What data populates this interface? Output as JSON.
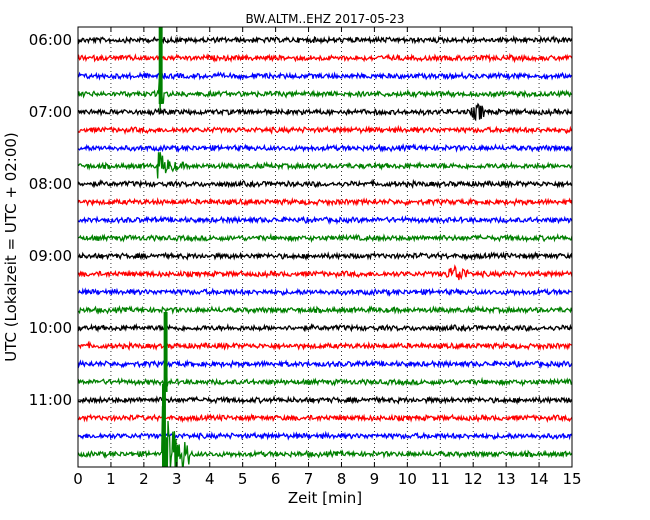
{
  "chart_data": {
    "type": "line",
    "title": "BW.ALTM..EHZ 2017-05-23",
    "xlabel": "Zeit  [min]",
    "ylabel": "UTC (Lokalzeit = UTC + 02:00)",
    "xlim": [
      0,
      15
    ],
    "x_ticks": [
      0,
      1,
      2,
      3,
      4,
      5,
      6,
      7,
      8,
      9,
      10,
      11,
      12,
      13,
      14,
      15
    ],
    "x_tick_labels": [
      "0",
      "1",
      "2",
      "3",
      "4",
      "5",
      "6",
      "7",
      "8",
      "9",
      "10",
      "11",
      "12",
      "13",
      "14",
      "15"
    ],
    "y_tick_labels": [
      "06:00",
      "07:00",
      "08:00",
      "09:00",
      "10:00",
      "11:00"
    ],
    "grid": "vertical dotted",
    "trace_interval_minutes": 15,
    "first_trace": "06:00",
    "trace_colors": [
      "#000000",
      "#ff0000",
      "#0000ff",
      "#008000"
    ],
    "traces": [
      {
        "start": "06:00",
        "color": "#000000"
      },
      {
        "start": "06:15",
        "color": "#ff0000"
      },
      {
        "start": "06:30",
        "color": "#0000ff"
      },
      {
        "start": "06:45",
        "color": "#008000"
      },
      {
        "start": "07:00",
        "color": "#000000"
      },
      {
        "start": "07:15",
        "color": "#ff0000"
      },
      {
        "start": "07:30",
        "color": "#0000ff"
      },
      {
        "start": "07:45",
        "color": "#008000"
      },
      {
        "start": "08:00",
        "color": "#000000"
      },
      {
        "start": "08:15",
        "color": "#ff0000"
      },
      {
        "start": "08:30",
        "color": "#0000ff"
      },
      {
        "start": "08:45",
        "color": "#008000"
      },
      {
        "start": "09:00",
        "color": "#000000"
      },
      {
        "start": "09:15",
        "color": "#ff0000"
      },
      {
        "start": "09:30",
        "color": "#0000ff"
      },
      {
        "start": "09:45",
        "color": "#008000"
      },
      {
        "start": "10:00",
        "color": "#000000"
      },
      {
        "start": "10:15",
        "color": "#ff0000"
      },
      {
        "start": "10:30",
        "color": "#0000ff"
      },
      {
        "start": "10:45",
        "color": "#008000"
      },
      {
        "start": "11:00",
        "color": "#000000"
      },
      {
        "start": "11:15",
        "color": "#ff0000"
      },
      {
        "start": "11:30",
        "color": "#0000ff"
      },
      {
        "start": "11:45",
        "color": "#008000"
      }
    ],
    "events": [
      {
        "trace": "06:45",
        "x_start": 2.45,
        "x_end": 2.6,
        "amplitude": "clipped",
        "color": "#008000"
      },
      {
        "trace": "07:45",
        "x_start": 2.4,
        "x_end": 3.2,
        "amplitude": "large",
        "color": "#008000"
      },
      {
        "trace": "07:00",
        "x_start": 11.9,
        "x_end": 12.4,
        "amplitude": "medium",
        "color": "#000000"
      },
      {
        "trace": "09:15",
        "x_start": 11.1,
        "x_end": 11.9,
        "amplitude": "medium",
        "color": "#ff0000"
      },
      {
        "trace": "10:45",
        "x_start": 2.6,
        "x_end": 2.75,
        "amplitude": "clipped",
        "color": "#008000"
      },
      {
        "trace": "11:45",
        "x_start": 2.55,
        "x_end": 3.4,
        "amplitude": "clipped",
        "color": "#008000"
      }
    ]
  }
}
